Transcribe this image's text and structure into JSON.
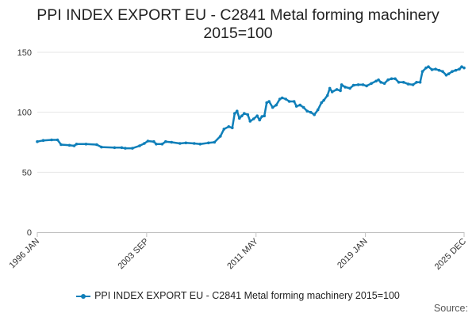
{
  "colors": {
    "series": "#0f7fb9",
    "grid": "#e6e6e6",
    "axis": "#c0c0c0",
    "text": "#333333"
  },
  "source_label": "Source:",
  "chart_data": {
    "type": "line",
    "title_lines": [
      "PPI INDEX EXPORT EU - C2841 Metal forming machinery",
      "2015=100"
    ],
    "xlabel": "",
    "ylabel": "",
    "ylim": [
      0,
      150
    ],
    "yticks": [
      0,
      50,
      100,
      150
    ],
    "xlim": [
      "1996-01",
      "2025-12"
    ],
    "xticks": [
      {
        "label": "1996 JAN",
        "date": "1996-01"
      },
      {
        "label": "2003 SEP",
        "date": "2003-09"
      },
      {
        "label": "2011 MAY",
        "date": "2011-05"
      },
      {
        "label": "2019 JAN",
        "date": "2019-01"
      },
      {
        "label": "2025 DEC",
        "date": "2025-12"
      }
    ],
    "grid": true,
    "legend": "bottom",
    "series": [
      {
        "name": "PPI INDEX EXPORT EU - C2841 Metal forming machinery 2015=100",
        "points": [
          [
            "1996-01",
            75.5
          ],
          [
            "1996-06",
            76.5
          ],
          [
            "1997-01",
            77
          ],
          [
            "1997-06",
            77
          ],
          [
            "1997-09",
            73
          ],
          [
            "1998-04",
            72.5
          ],
          [
            "1998-08",
            72
          ],
          [
            "1998-10",
            73.5
          ],
          [
            "1999-06",
            73.5
          ],
          [
            "2000-03",
            73
          ],
          [
            "2000-07",
            71
          ],
          [
            "2001-06",
            70.5
          ],
          [
            "2001-12",
            70.5
          ],
          [
            "2002-03",
            70
          ],
          [
            "2002-09",
            70
          ],
          [
            "2003-03",
            72
          ],
          [
            "2003-07",
            74
          ],
          [
            "2003-10",
            76
          ],
          [
            "2004-03",
            75.5
          ],
          [
            "2004-05",
            73.5
          ],
          [
            "2004-10",
            73.5
          ],
          [
            "2005-01",
            75.5
          ],
          [
            "2005-06",
            75
          ],
          [
            "2006-01",
            74
          ],
          [
            "2006-06",
            74.5
          ],
          [
            "2007-01",
            74
          ],
          [
            "2007-06",
            73.5
          ],
          [
            "2008-01",
            74.5
          ],
          [
            "2008-06",
            75
          ],
          [
            "2008-11",
            80
          ],
          [
            "2009-02",
            86
          ],
          [
            "2009-06",
            88
          ],
          [
            "2009-09",
            87
          ],
          [
            "2009-11",
            99
          ],
          [
            "2010-01",
            101
          ],
          [
            "2010-03",
            95
          ],
          [
            "2010-05",
            97
          ],
          [
            "2010-07",
            99
          ],
          [
            "2010-10",
            98
          ],
          [
            "2010-12",
            92.5
          ],
          [
            "2011-03",
            94.5
          ],
          [
            "2011-06",
            97
          ],
          [
            "2011-08",
            93.5
          ],
          [
            "2011-10",
            96.5
          ],
          [
            "2011-12",
            97
          ],
          [
            "2012-02",
            108
          ],
          [
            "2012-04",
            109
          ],
          [
            "2012-07",
            104
          ],
          [
            "2012-10",
            106
          ],
          [
            "2013-01",
            111
          ],
          [
            "2013-03",
            112
          ],
          [
            "2013-06",
            111
          ],
          [
            "2013-09",
            109
          ],
          [
            "2014-01",
            109
          ],
          [
            "2014-03",
            105
          ],
          [
            "2014-06",
            106
          ],
          [
            "2014-09",
            104
          ],
          [
            "2014-12",
            101
          ],
          [
            "2015-03",
            100
          ],
          [
            "2015-06",
            98
          ],
          [
            "2015-09",
            102
          ],
          [
            "2015-12",
            108
          ],
          [
            "2016-02",
            110
          ],
          [
            "2016-05",
            114
          ],
          [
            "2016-07",
            120
          ],
          [
            "2016-09",
            117
          ],
          [
            "2017-01",
            119
          ],
          [
            "2017-04",
            118
          ],
          [
            "2017-05",
            123
          ],
          [
            "2017-08",
            121
          ],
          [
            "2017-12",
            120
          ],
          [
            "2018-03",
            122.5
          ],
          [
            "2018-07",
            123
          ],
          [
            "2018-11",
            123
          ],
          [
            "2019-02",
            122
          ],
          [
            "2019-06",
            124
          ],
          [
            "2019-10",
            126
          ],
          [
            "2019-12",
            127
          ],
          [
            "2020-02",
            125
          ],
          [
            "2020-05",
            124
          ],
          [
            "2020-08",
            127
          ],
          [
            "2020-11",
            128
          ],
          [
            "2021-02",
            128
          ],
          [
            "2021-05",
            125
          ],
          [
            "2021-09",
            125
          ],
          [
            "2022-01",
            123.5
          ],
          [
            "2022-05",
            123
          ],
          [
            "2022-08",
            125
          ],
          [
            "2022-11",
            125
          ],
          [
            "2023-01",
            134
          ],
          [
            "2023-04",
            137
          ],
          [
            "2023-06",
            138
          ],
          [
            "2023-09",
            135.5
          ],
          [
            "2023-12",
            136
          ],
          [
            "2024-03",
            135
          ],
          [
            "2024-06",
            134
          ],
          [
            "2024-09",
            131
          ],
          [
            "2024-11",
            132
          ],
          [
            "2025-02",
            134
          ],
          [
            "2025-05",
            135
          ],
          [
            "2025-08",
            136
          ],
          [
            "2025-10",
            138
          ],
          [
            "2025-12",
            137
          ]
        ]
      }
    ]
  }
}
